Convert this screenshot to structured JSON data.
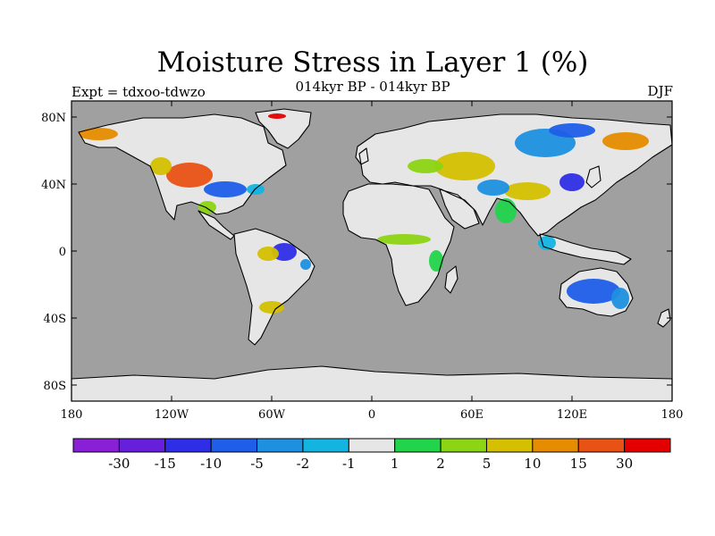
{
  "title": "Moisture Stress in Layer 1 (%)",
  "subtitle": "014kyr BP - 014kyr BP",
  "left_label": "Expt = tdxoo-tdwzo",
  "right_label": "DJF",
  "map": {
    "x_ticks": [
      "180",
      "120W",
      "60W",
      "0",
      "60E",
      "120E",
      "180"
    ],
    "y_ticks": [
      "80N",
      "40N",
      "0",
      "40S",
      "80S"
    ],
    "ocean_color": "#a0a0a0",
    "land_neutral_color": "#e6e6e6",
    "coastline_color": "#000000"
  },
  "colorbar": {
    "colors": [
      "#8a20d6",
      "#6620dc",
      "#2e2ee6",
      "#1e5ee8",
      "#1e90e0",
      "#14b4e0",
      "#e6e6e6",
      "#22d44c",
      "#8cd414",
      "#d4c000",
      "#e68c00",
      "#e85214",
      "#e40000"
    ],
    "labels": [
      "-30",
      "-15",
      "-10",
      "-5",
      "-2",
      "-1",
      "1",
      "2",
      "5",
      "10",
      "15",
      "30"
    ]
  }
}
